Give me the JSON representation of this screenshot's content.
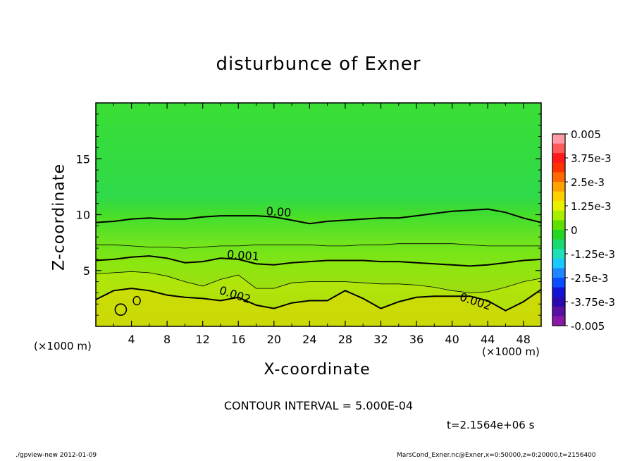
{
  "chart_data": {
    "type": "contour",
    "title": "disturbunce of Exner",
    "xlabel": "X-coordinate",
    "ylabel": "Z-coordinate",
    "x_unit_left": "(×1000 m)",
    "x_unit_right": "(×1000 m)",
    "x_ticks": [
      "4",
      "8",
      "12",
      "16",
      "20",
      "24",
      "28",
      "32",
      "36",
      "40",
      "44",
      "48"
    ],
    "y_ticks": [
      "5",
      "10",
      "15"
    ],
    "xlim": [
      0,
      50
    ],
    "ylim": [
      0,
      20
    ],
    "colorbar": {
      "labels": [
        "0.005",
        "3.75e-3",
        "2.5e-3",
        "1.25e-3",
        "0",
        "-1.25e-3",
        "-2.5e-3",
        "-3.75e-3",
        "-0.005"
      ],
      "range": [
        -0.005,
        0.005
      ],
      "colors": [
        "#ff9aa6",
        "#ff5a5a",
        "#ff1a1a",
        "#ff3300",
        "#ff6a00",
        "#ffa200",
        "#ffd000",
        "#e8f000",
        "#a8ee00",
        "#5fe000",
        "#24d622",
        "#19d970",
        "#1ee0b8",
        "#18c8ff",
        "#1e86ff",
        "#0a4cff",
        "#1414d6",
        "#2a0ab0",
        "#5a10a0",
        "#8a18a8"
      ]
    },
    "contour_labels": [
      {
        "text": "0.00",
        "x": 20.5,
        "z": 9.9
      },
      {
        "text": "0.001",
        "x": 16.5,
        "z": 6.0
      },
      {
        "text": "0.002",
        "x": 15.5,
        "z": 2.5
      },
      {
        "text": "0.002",
        "x": 42.5,
        "z": 1.9
      }
    ],
    "contour_lines": [
      {
        "level": 0.0,
        "bold": true,
        "z": [
          9.3,
          9.4,
          9.6,
          9.7,
          9.6,
          9.6,
          9.8,
          9.9,
          9.9,
          9.9,
          9.8,
          9.5,
          9.2,
          9.4,
          9.5,
          9.6,
          9.7,
          9.7,
          9.9,
          10.1,
          10.3,
          10.4,
          10.5,
          10.2,
          9.7,
          9.3
        ]
      },
      {
        "level": 0.0005,
        "bold": false,
        "z": [
          7.3,
          7.3,
          7.2,
          7.1,
          7.1,
          7.0,
          7.1,
          7.2,
          7.2,
          7.3,
          7.3,
          7.3,
          7.3,
          7.2,
          7.2,
          7.3,
          7.3,
          7.4,
          7.4,
          7.4,
          7.4,
          7.3,
          7.2,
          7.2,
          7.2,
          7.2
        ]
      },
      {
        "level": 0.001,
        "bold": true,
        "z": [
          5.9,
          6.0,
          6.2,
          6.3,
          6.1,
          5.7,
          5.8,
          6.1,
          6.0,
          5.6,
          5.5,
          5.7,
          5.8,
          5.9,
          5.9,
          5.9,
          5.8,
          5.8,
          5.7,
          5.6,
          5.5,
          5.4,
          5.5,
          5.7,
          5.9,
          6.0
        ]
      },
      {
        "level": 0.0015,
        "bold": false,
        "z": [
          4.7,
          4.8,
          4.9,
          4.8,
          4.5,
          4.0,
          3.6,
          4.2,
          4.6,
          3.4,
          3.4,
          3.9,
          4.0,
          4.0,
          4.0,
          3.9,
          3.8,
          3.8,
          3.7,
          3.5,
          3.2,
          3.0,
          3.1,
          3.5,
          4.0,
          4.3
        ]
      },
      {
        "level": 0.002,
        "bold": true,
        "z": [
          2.4,
          3.2,
          3.4,
          3.2,
          2.8,
          2.6,
          2.5,
          2.3,
          2.6,
          1.9,
          1.6,
          2.1,
          2.3,
          2.3,
          3.2,
          2.5,
          1.6,
          2.2,
          2.6,
          2.7,
          2.7,
          2.7,
          2.3,
          1.4,
          2.2,
          3.3
        ]
      }
    ]
  },
  "footer": {
    "contour_interval": "CONTOUR INTERVAL = 5.000E-04",
    "time": "t=2.1564e+06 s",
    "program": "./gpview-new   2012-01-09",
    "source": "MarsCond_Exner.nc@Exner,x=0:50000,z=0:20000,t=2156400"
  }
}
